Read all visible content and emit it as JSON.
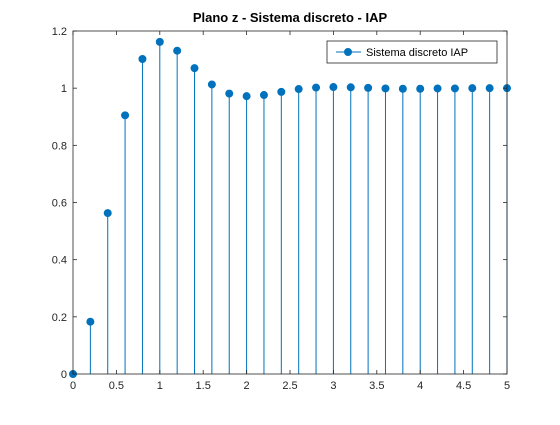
{
  "chart_data": {
    "type": "stem",
    "title": "Plano z - Sistema discreto - IAP",
    "xlabel": "",
    "ylabel": "",
    "xlim": [
      0,
      5
    ],
    "ylim": [
      0,
      1.2
    ],
    "xticks": [
      "0",
      "0.5",
      "1",
      "1.5",
      "2",
      "2.5",
      "3",
      "3.5",
      "4",
      "4.5",
      "5"
    ],
    "xtick_values": [
      0,
      0.5,
      1,
      1.5,
      2,
      2.5,
      3,
      3.5,
      4,
      4.5,
      5
    ],
    "yticks": [
      "0",
      "0.2",
      "0.4",
      "0.6",
      "0.8",
      "1",
      "1.2"
    ],
    "ytick_values": [
      0,
      0.2,
      0.4,
      0.6,
      0.8,
      1,
      1.2
    ],
    "grid": false,
    "legend_position": "top-right",
    "series": [
      {
        "name": "Sistema discreto IAP",
        "color": "#0072BD",
        "x": [
          0,
          0.2,
          0.4,
          0.6,
          0.8,
          1.0,
          1.2,
          1.4,
          1.6,
          1.8,
          2.0,
          2.2,
          2.4,
          2.6,
          2.8,
          3.0,
          3.2,
          3.4,
          3.6,
          3.8,
          4.0,
          4.2,
          4.4,
          4.6,
          4.8,
          5.0
        ],
        "y": [
          0,
          0.183,
          0.563,
          0.905,
          1.102,
          1.162,
          1.131,
          1.07,
          1.013,
          0.981,
          0.972,
          0.976,
          0.987,
          0.997,
          1.002,
          1.004,
          1.003,
          1.001,
          0.999,
          0.998,
          0.998,
          0.999,
          0.999,
          1.0,
          1.0,
          1.0
        ]
      }
    ]
  }
}
